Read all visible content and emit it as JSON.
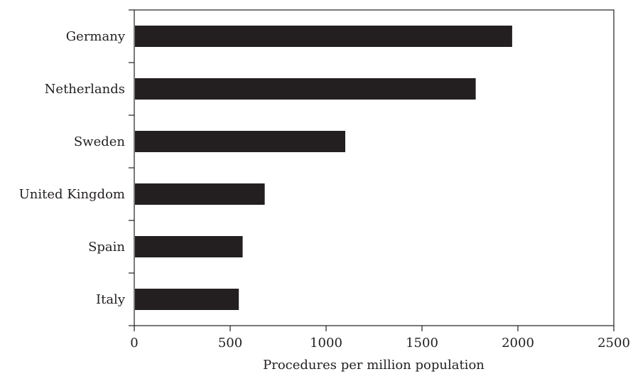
{
  "chart_data": {
    "type": "bar",
    "orientation": "horizontal",
    "title": "",
    "xlabel": "Procedures per million population",
    "ylabel": "",
    "categories": [
      "Germany",
      "Netherlands",
      "Sweden",
      "United Kingdom",
      "Spain",
      "Italy"
    ],
    "values": [
      1970,
      1780,
      1100,
      680,
      565,
      545
    ],
    "xlim": [
      0,
      2500
    ],
    "xticks": [
      0,
      500,
      1000,
      1500,
      2000,
      2500
    ],
    "xtick_labels": [
      "0",
      "500",
      "1000",
      "1500",
      "2000",
      "2500"
    ],
    "grid": false,
    "legend": "none",
    "colors": {
      "bar": "#231f20",
      "axis": "#231f20",
      "background": "#ffffff"
    }
  }
}
